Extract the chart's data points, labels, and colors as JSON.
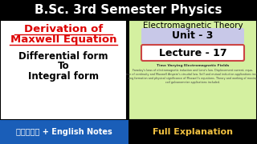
{
  "title": "B.Sc. 3rd Semester Physics",
  "left_panel_bg": "#ffffff",
  "left_panel_border": "#000000",
  "left_title_line1": "Derivation of",
  "left_title_line2": "Maxwell Equation",
  "left_sub1": "Differential form",
  "left_sub2": "To",
  "left_sub3": "Integral form",
  "right_panel_bg": "#d4f0a0",
  "right_top_text": "Electromagnetic Theory",
  "unit_pill_bg": "#c8c8e8",
  "unit_text": "Unit - 3",
  "lecture_pill_bg": "#ffffff",
  "lecture_pill_border": "#cc4444",
  "lecture_text": "Lecture - 17",
  "small_text_title": "Time Varying Electromagnetic Fields",
  "small_text_body": "Faraday's laws of electromagnetic induction and Lenz's law. Displacement current, equation of continuity and Maxwell Ampere's circuital law. Self and mutual induction applications including formation and physical significance of Maxwell's equations. Theory and working of moving coil galvanometer applications included.",
  "bottom_left_bg": "#1a5eb8",
  "bottom_left_text": "हिंदी + English Notes",
  "bottom_right_bg": "#000000",
  "bottom_right_text": "Full Explanation",
  "bottom_right_text_color": "#f0c040",
  "title_bg": "#000000",
  "title_color": "#ffffff",
  "red_color": "#dd0000",
  "black_color": "#000000"
}
